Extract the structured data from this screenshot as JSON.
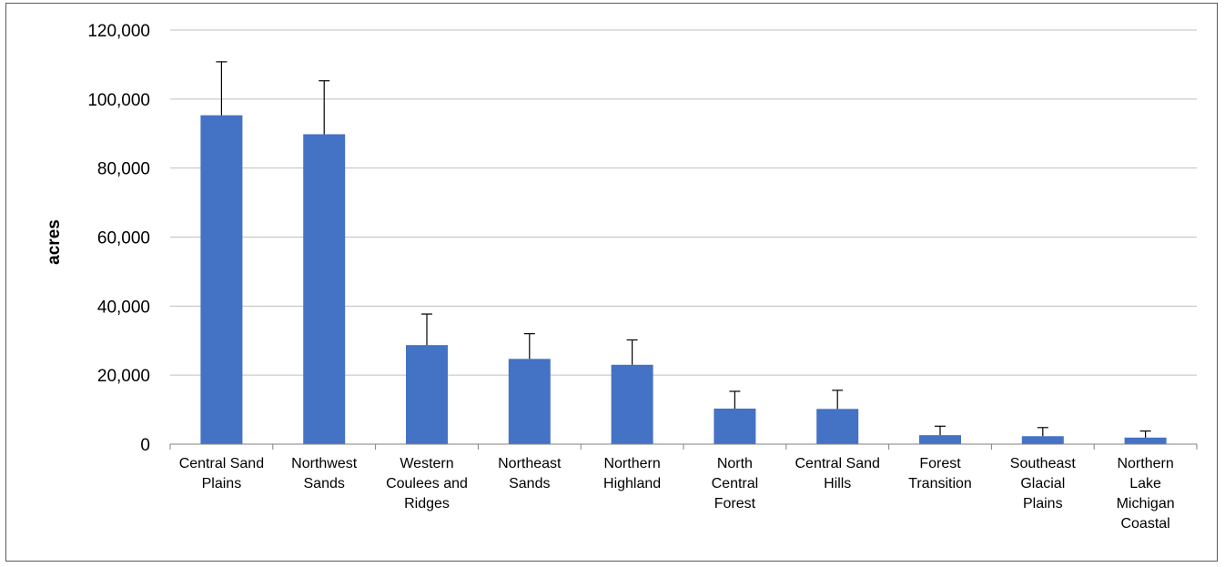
{
  "chart_data": {
    "type": "bar",
    "title": "",
    "xlabel": "",
    "ylabel": "acres",
    "ylim": [
      0,
      120000
    ],
    "yticks": [
      0,
      20000,
      40000,
      60000,
      80000,
      100000,
      120000
    ],
    "ytick_labels": [
      "0",
      "20,000",
      "40,000",
      "60,000",
      "80,000",
      "100,000",
      "120,000"
    ],
    "grid": true,
    "legend": "none",
    "categories": [
      [
        "Central Sand",
        "Plains"
      ],
      [
        "Northwest",
        "Sands"
      ],
      [
        "Western",
        "Coulees and",
        "Ridges"
      ],
      [
        "Northeast",
        "Sands"
      ],
      [
        "Northern",
        "Highland"
      ],
      [
        "North",
        "Central",
        "Forest"
      ],
      [
        "Central Sand",
        "Hills"
      ],
      [
        "Forest",
        "Transition"
      ],
      [
        "Southeast",
        "Glacial",
        "Plains"
      ],
      [
        "Northern",
        "Lake",
        "Michigan",
        "Coastal"
      ]
    ],
    "values": [
      95300,
      89800,
      28700,
      24700,
      23000,
      10300,
      10200,
      2600,
      2300,
      1900
    ],
    "error_upper": [
      15500,
      15500,
      9000,
      7300,
      7200,
      5000,
      5400,
      2600,
      2500,
      1900
    ],
    "colors": {
      "bar": "#4472C4",
      "grid": "#BFBFBF",
      "axis": "#808080",
      "error_bar": "#000000"
    }
  }
}
